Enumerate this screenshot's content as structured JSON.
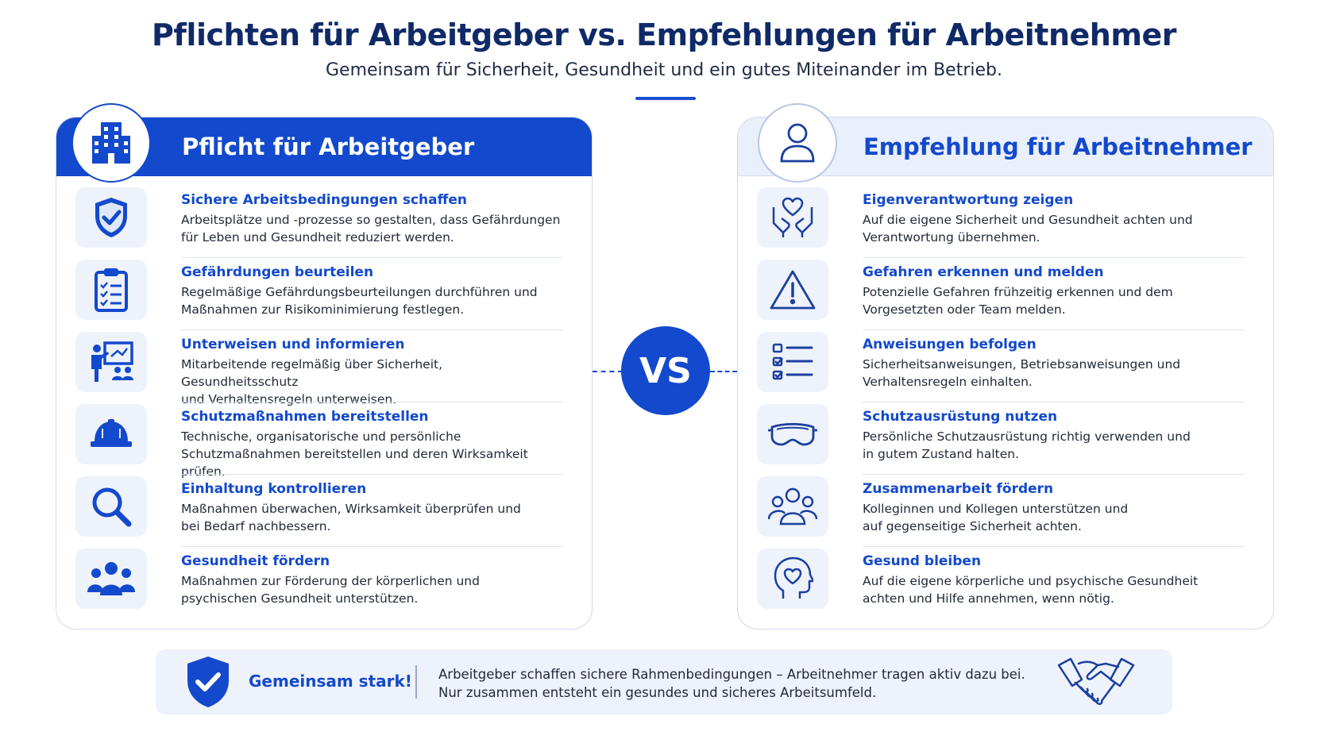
{
  "header": {
    "title": "Pflichten für Arbeitgeber vs. Empfehlungen für Arbeitnehmer",
    "subtitle": "Gemeinsam für Sicherheit, Gesundheit und ein gutes Miteinander im Betrieb."
  },
  "left": {
    "heading": "Pflicht für Arbeitgeber",
    "badge_icon": "office-building-icon",
    "items": [
      {
        "icon": "shield-check-icon",
        "title": "Sichere Arbeitsbedingungen schaffen",
        "desc": "Arbeitsplätze und -prozesse so gestalten, dass Gefährdungen\nfür Leben und Gesundheit reduziert werden."
      },
      {
        "icon": "clipboard-checklist-icon",
        "title": "Gefährdungen beurteilen",
        "desc": "Regelmäßige Gefährdungsbeurteilungen durchführen und\nMaßnahmen zur Risikominimierung festlegen."
      },
      {
        "icon": "presentation-icon",
        "title": "Unterweisen und informieren",
        "desc": "Mitarbeitende regelmäßig über Sicherheit, Gesundheitsschutz\nund Verhaltensregeln unterweisen."
      },
      {
        "icon": "hard-hat-icon",
        "title": "Schutzmaßnahmen bereitstellen",
        "desc": "Technische, organisatorische und persönliche\nSchutzmaßnahmen bereitstellen und deren Wirksamkeit prüfen."
      },
      {
        "icon": "magnifier-icon",
        "title": "Einhaltung kontrollieren",
        "desc": "Maßnahmen überwachen, Wirksamkeit überprüfen und\nbei Bedarf nachbessern."
      },
      {
        "icon": "group-icon",
        "title": "Gesundheit fördern",
        "desc": "Maßnahmen zur Förderung der körperlichen und\npsychischen Gesundheit unterstützen."
      }
    ]
  },
  "right": {
    "heading": "Empfehlung für Arbeitnehmer",
    "badge_icon": "user-icon",
    "items": [
      {
        "icon": "hands-heart-icon",
        "title": "Eigenverantwortung zeigen",
        "desc": "Auf die eigene Sicherheit und Gesundheit achten und\nVerantwortung übernehmen."
      },
      {
        "icon": "warning-triangle-icon",
        "title": "Gefahren erkennen und melden",
        "desc": "Potenzielle Gefahren frühzeitig erkennen und dem\nVorgesetzten oder Team melden."
      },
      {
        "icon": "checklist-icon",
        "title": "Anweisungen befolgen",
        "desc": "Sicherheitsanweisungen, Betriebsanweisungen und\nVerhaltensregeln einhalten."
      },
      {
        "icon": "safety-goggles-icon",
        "title": "Schutzausrüstung nutzen",
        "desc": "Persönliche Schutzausrüstung richtig verwenden und\nin gutem Zustand halten."
      },
      {
        "icon": "team-icon",
        "title": "Zusammenarbeit fördern",
        "desc": "Kolleginnen und Kollegen unterstützen und\nauf gegenseitige Sicherheit achten."
      },
      {
        "icon": "head-heart-icon",
        "title": "Gesund bleiben",
        "desc": "Auf die eigene körperliche und psychische Gesundheit\nachten und Hilfe annehmen, wenn nötig."
      }
    ]
  },
  "vs_label": "VS",
  "footer": {
    "label": "Gemeinsam stark!",
    "line1": "Arbeitgeber schaffen sichere Rahmenbedingungen – Arbeitnehmer tragen aktiv dazu bei.",
    "line2": "Nur zusammen entsteht ein gesundes und sicheres Arbeitsumfeld.",
    "icons": [
      "shield-check-icon",
      "handshake-icon"
    ]
  },
  "colors": {
    "accent": "#1349cc",
    "title": "#0f2a66",
    "panel_tint": "#eaf0fb",
    "icon_bg": "#eef2fa"
  }
}
